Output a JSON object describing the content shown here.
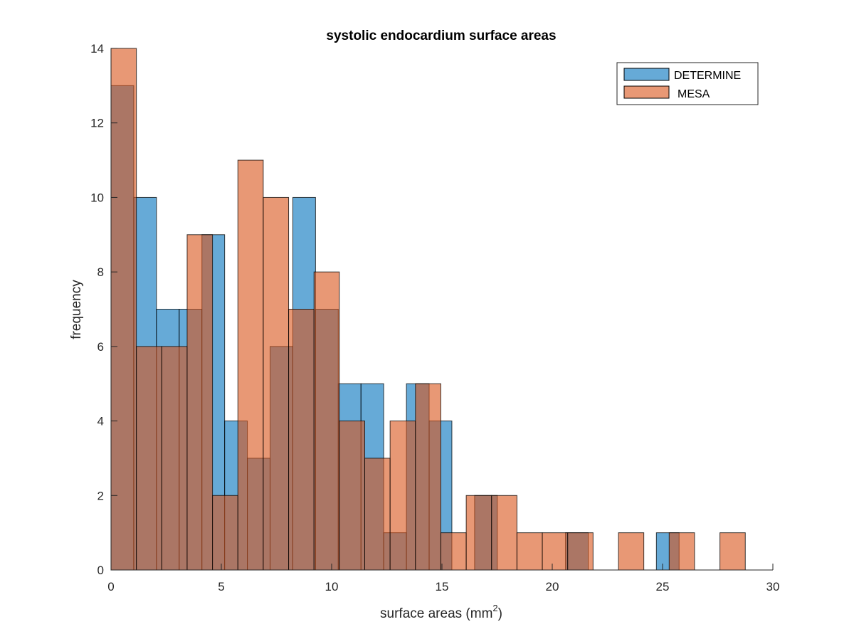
{
  "chart_data": {
    "type": "bar",
    "title": "systolic endocardium surface areas",
    "xlabel": "surface areas (mm",
    "xlabel_sup": "2",
    "xlabel_suffix": ")",
    "ylabel": "frequency",
    "xlim": [
      0,
      30
    ],
    "ylim": [
      0,
      14
    ],
    "xticks": [
      "0",
      "5",
      "10",
      "15",
      "20",
      "25",
      "30"
    ],
    "yticks": [
      "0",
      "2",
      "4",
      "6",
      "8",
      "10",
      "12",
      "14"
    ],
    "legend_position": "top-right",
    "series": [
      {
        "name": "DETERMINE",
        "color": "#0072BD",
        "bins": [
          {
            "x0": 0.0,
            "x1": 1.03,
            "count": 13
          },
          {
            "x0": 1.03,
            "x1": 2.06,
            "count": 10
          },
          {
            "x0": 2.06,
            "x1": 3.09,
            "count": 7
          },
          {
            "x0": 3.09,
            "x1": 4.12,
            "count": 7
          },
          {
            "x0": 4.12,
            "x1": 5.15,
            "count": 9
          },
          {
            "x0": 5.15,
            "x1": 6.18,
            "count": 4
          },
          {
            "x0": 6.18,
            "x1": 7.21,
            "count": 3
          },
          {
            "x0": 7.21,
            "x1": 8.24,
            "count": 6
          },
          {
            "x0": 8.24,
            "x1": 9.27,
            "count": 10
          },
          {
            "x0": 9.27,
            "x1": 10.3,
            "count": 7
          },
          {
            "x0": 10.3,
            "x1": 11.33,
            "count": 5
          },
          {
            "x0": 11.33,
            "x1": 12.36,
            "count": 5
          },
          {
            "x0": 12.36,
            "x1": 13.39,
            "count": 1
          },
          {
            "x0": 13.39,
            "x1": 14.42,
            "count": 5
          },
          {
            "x0": 14.42,
            "x1": 15.45,
            "count": 4
          },
          {
            "x0": 15.45,
            "x1": 16.48,
            "count": 0
          },
          {
            "x0": 16.48,
            "x1": 17.51,
            "count": 2
          },
          {
            "x0": 17.51,
            "x1": 18.54,
            "count": 0
          },
          {
            "x0": 18.54,
            "x1": 19.57,
            "count": 0
          },
          {
            "x0": 19.57,
            "x1": 20.6,
            "count": 0
          },
          {
            "x0": 20.6,
            "x1": 21.63,
            "count": 1
          },
          {
            "x0": 21.63,
            "x1": 22.66,
            "count": 0
          },
          {
            "x0": 22.66,
            "x1": 23.69,
            "count": 0
          },
          {
            "x0": 23.69,
            "x1": 24.72,
            "count": 0
          },
          {
            "x0": 24.72,
            "x1": 25.75,
            "count": 1
          }
        ]
      },
      {
        "name": "MESA",
        "color": "#D95319",
        "bins": [
          {
            "x0": 0.0,
            "x1": 1.15,
            "count": 14
          },
          {
            "x0": 1.15,
            "x1": 2.3,
            "count": 6
          },
          {
            "x0": 2.3,
            "x1": 3.45,
            "count": 6
          },
          {
            "x0": 3.45,
            "x1": 4.6,
            "count": 9
          },
          {
            "x0": 4.6,
            "x1": 5.75,
            "count": 2
          },
          {
            "x0": 5.75,
            "x1": 6.9,
            "count": 11
          },
          {
            "x0": 6.9,
            "x1": 8.05,
            "count": 10
          },
          {
            "x0": 8.05,
            "x1": 9.2,
            "count": 7
          },
          {
            "x0": 9.2,
            "x1": 10.35,
            "count": 8
          },
          {
            "x0": 10.35,
            "x1": 11.5,
            "count": 4
          },
          {
            "x0": 11.5,
            "x1": 12.65,
            "count": 3
          },
          {
            "x0": 12.65,
            "x1": 13.8,
            "count": 4
          },
          {
            "x0": 13.8,
            "x1": 14.95,
            "count": 5
          },
          {
            "x0": 14.95,
            "x1": 16.1,
            "count": 1
          },
          {
            "x0": 16.1,
            "x1": 17.25,
            "count": 2
          },
          {
            "x0": 17.25,
            "x1": 18.4,
            "count": 2
          },
          {
            "x0": 18.4,
            "x1": 19.55,
            "count": 1
          },
          {
            "x0": 19.55,
            "x1": 20.7,
            "count": 1
          },
          {
            "x0": 20.7,
            "x1": 21.85,
            "count": 1
          },
          {
            "x0": 21.85,
            "x1": 23.0,
            "count": 0
          },
          {
            "x0": 23.0,
            "x1": 24.15,
            "count": 1
          },
          {
            "x0": 24.15,
            "x1": 25.3,
            "count": 0
          },
          {
            "x0": 25.3,
            "x1": 26.45,
            "count": 1
          },
          {
            "x0": 26.45,
            "x1": 27.6,
            "count": 0
          },
          {
            "x0": 27.6,
            "x1": 28.75,
            "count": 1
          }
        ]
      }
    ]
  }
}
